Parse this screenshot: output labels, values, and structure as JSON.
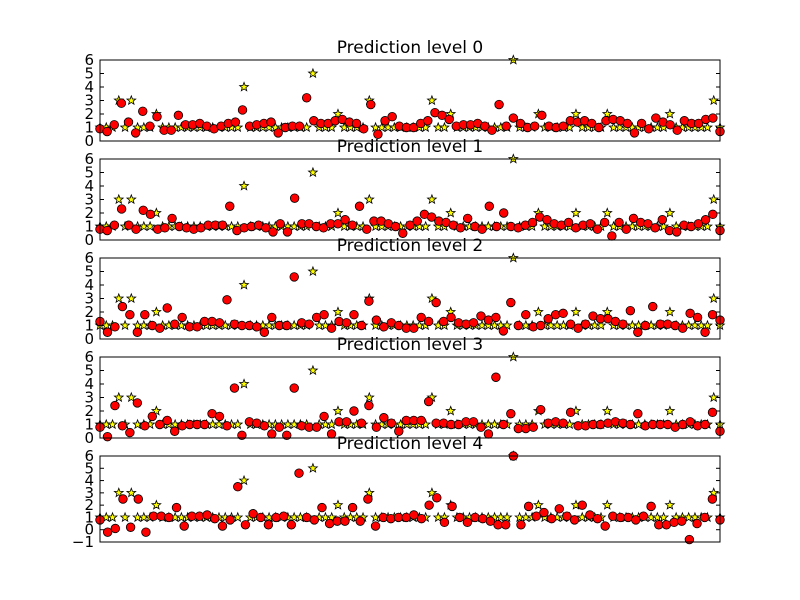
{
  "figure": {
    "background": "#ffffff"
  },
  "style": {
    "star_fill": "#ffff00",
    "star_stroke": "#000000",
    "circle_fill": "#ff0000",
    "circle_stroke": "#000000",
    "frame_color": "#000000"
  },
  "chart_data": [
    {
      "type": "scatter",
      "title": "Prediction level 0",
      "xlim": [
        0,
        99
      ],
      "ylim": [
        0,
        6
      ],
      "yticks": [
        0,
        1,
        2,
        3,
        4,
        5,
        6
      ],
      "xticks": [],
      "grid": false,
      "series": [
        {
          "marker": "star",
          "values": [
            1,
            1,
            1,
            3,
            1,
            3,
            1,
            1,
            1,
            2,
            1,
            1,
            1,
            1,
            1,
            1,
            1,
            1,
            1,
            1,
            1,
            1,
            1,
            4,
            1,
            1,
            1,
            1,
            1,
            1,
            1,
            1,
            1,
            1,
            5,
            1,
            1,
            1,
            2,
            1,
            1,
            1,
            1,
            3,
            1,
            1,
            1,
            1,
            1,
            1,
            1,
            1,
            1,
            3,
            1,
            1,
            2,
            1,
            1,
            1,
            1,
            1,
            1,
            1,
            1,
            1,
            6,
            1,
            1,
            1,
            2,
            1,
            1,
            1,
            1,
            1,
            2,
            1,
            1,
            1,
            1,
            2,
            1,
            1,
            1,
            1,
            1,
            1,
            1,
            1,
            1,
            2,
            1,
            1,
            1,
            1,
            1,
            1,
            3,
            1
          ]
        },
        {
          "marker": "circle",
          "values": [
            0.9,
            0.7,
            1.2,
            2.8,
            1.4,
            0.6,
            2.2,
            1.1,
            1.8,
            0.8,
            0.8,
            1.9,
            1.2,
            1.2,
            1.3,
            1.1,
            0.9,
            1.1,
            1.3,
            1.4,
            2.3,
            1.1,
            1.2,
            1.3,
            1.4,
            0.6,
            1.0,
            1.1,
            1.1,
            3.2,
            1.5,
            1.3,
            1.3,
            1.5,
            1.6,
            1.4,
            1.3,
            0.9,
            2.7,
            0.5,
            1.5,
            1.8,
            1.1,
            1.0,
            1.0,
            1.3,
            1.5,
            2.1,
            1.9,
            1.6,
            1.1,
            1.2,
            1.2,
            1.3,
            1.1,
            0.8,
            2.7,
            1.1,
            1.7,
            1.3,
            1.0,
            1.1,
            1.9,
            1.1,
            1.0,
            1.1,
            1.5,
            1.4,
            1.5,
            1.3,
            1.0,
            1.5,
            1.6,
            1.5,
            1.3,
            0.6,
            1.3,
            0.9,
            1.7,
            1.4,
            1.2,
            0.8,
            1.5,
            1.3,
            1.3,
            1.6,
            1.7,
            0.7
          ]
        }
      ]
    },
    {
      "type": "scatter",
      "title": "Prediction level 1",
      "xlim": [
        0,
        99
      ],
      "ylim": [
        0,
        6
      ],
      "yticks": [
        0,
        1,
        2,
        3,
        4,
        5,
        6
      ],
      "xticks": [],
      "grid": false,
      "series": [
        {
          "marker": "star",
          "values": [
            1,
            1,
            1,
            3,
            1,
            3,
            1,
            1,
            1,
            2,
            1,
            1,
            1,
            1,
            1,
            1,
            1,
            1,
            1,
            1,
            1,
            1,
            1,
            4,
            1,
            1,
            1,
            1,
            1,
            1,
            1,
            1,
            1,
            1,
            5,
            1,
            1,
            1,
            2,
            1,
            1,
            1,
            1,
            3,
            1,
            1,
            1,
            1,
            1,
            1,
            1,
            1,
            1,
            3,
            1,
            1,
            2,
            1,
            1,
            1,
            1,
            1,
            1,
            1,
            1,
            1,
            6,
            1,
            1,
            1,
            2,
            1,
            1,
            1,
            1,
            1,
            2,
            1,
            1,
            1,
            1,
            2,
            1,
            1,
            1,
            1,
            1,
            1,
            1,
            1,
            1,
            2,
            1,
            1,
            1,
            1,
            1,
            1,
            3,
            1
          ]
        },
        {
          "marker": "circle",
          "values": [
            0.8,
            0.7,
            1.1,
            2.3,
            1.1,
            0.8,
            2.2,
            1.9,
            0.8,
            0.9,
            1.6,
            1.0,
            0.9,
            0.8,
            0.9,
            1.1,
            1.1,
            1.1,
            2.5,
            0.7,
            0.9,
            1.0,
            1.1,
            0.9,
            0.6,
            1.2,
            0.6,
            3.1,
            1.2,
            1.2,
            1.0,
            0.9,
            1.2,
            1.2,
            1.5,
            1.1,
            2.5,
            0.8,
            1.4,
            1.4,
            1.2,
            1.0,
            0.5,
            1.1,
            1.4,
            1.9,
            1.7,
            1.4,
            1.3,
            1.1,
            0.9,
            1.6,
            1.0,
            0.8,
            2.5,
            1.0,
            2.0,
            1.0,
            0.9,
            1.1,
            1.3,
            1.7,
            1.5,
            1.2,
            1.1,
            1.3,
            0.9,
            1.1,
            1.2,
            0.8,
            1.3,
            0.3,
            1.3,
            0.8,
            1.6,
            1.3,
            1.2,
            0.9,
            1.5,
            0.7,
            0.6,
            1.1,
            1.0,
            1.2,
            1.5,
            1.9,
            0.7
          ]
        }
      ]
    },
    {
      "type": "scatter",
      "title": "Prediction level 2",
      "xlim": [
        0,
        99
      ],
      "ylim": [
        0,
        6
      ],
      "yticks": [
        0,
        1,
        2,
        3,
        4,
        5,
        6
      ],
      "xticks": [],
      "grid": false,
      "series": [
        {
          "marker": "star",
          "values": [
            1,
            1,
            1,
            3,
            1,
            3,
            1,
            1,
            1,
            2,
            1,
            1,
            1,
            1,
            1,
            1,
            1,
            1,
            1,
            1,
            1,
            1,
            1,
            4,
            1,
            1,
            1,
            1,
            1,
            1,
            1,
            1,
            1,
            1,
            5,
            1,
            1,
            1,
            2,
            1,
            1,
            1,
            1,
            3,
            1,
            1,
            1,
            1,
            1,
            1,
            1,
            1,
            1,
            3,
            1,
            1,
            2,
            1,
            1,
            1,
            1,
            1,
            1,
            1,
            1,
            1,
            6,
            1,
            1,
            1,
            2,
            1,
            1,
            1,
            1,
            1,
            2,
            1,
            1,
            1,
            1,
            2,
            1,
            1,
            1,
            1,
            1,
            1,
            1,
            1,
            1,
            2,
            1,
            1,
            1,
            1,
            1,
            1,
            3,
            1
          ]
        },
        {
          "marker": "circle",
          "values": [
            1.3,
            0.5,
            0.9,
            2.4,
            1.8,
            0.5,
            1.8,
            1.0,
            0.8,
            2.3,
            1.1,
            1.6,
            0.9,
            0.9,
            1.3,
            1.3,
            1.2,
            2.9,
            1.1,
            1.0,
            1.0,
            0.9,
            0.5,
            1.6,
            1.0,
            1.0,
            4.6,
            1.2,
            1.1,
            1.6,
            1.8,
            0.8,
            1.3,
            1.2,
            1.8,
            1.0,
            2.8,
            1.4,
            0.9,
            1.2,
            1.0,
            0.8,
            0.8,
            1.6,
            1.3,
            2.7,
            1.3,
            1.6,
            1.2,
            1.1,
            1.2,
            1.7,
            1.4,
            1.6,
            0.6,
            2.7,
            1.0,
            1.8,
            0.9,
            1.0,
            1.5,
            1.8,
            1.9,
            1.1,
            0.8,
            1.1,
            1.7,
            1.5,
            1.5,
            1.3,
            1.1,
            2.1,
            0.5,
            1.0,
            2.4,
            1.1,
            1.1,
            1.0,
            0.8,
            1.9,
            1.6,
            0.5,
            1.8,
            1.4
          ]
        }
      ]
    },
    {
      "type": "scatter",
      "title": "Prediction level 3",
      "xlim": [
        0,
        99
      ],
      "ylim": [
        0,
        6
      ],
      "yticks": [
        0,
        1,
        2,
        3,
        4,
        5,
        6
      ],
      "xticks": [],
      "grid": false,
      "series": [
        {
          "marker": "star",
          "values": [
            1,
            1,
            1,
            3,
            1,
            3,
            1,
            1,
            1,
            2,
            1,
            1,
            1,
            1,
            1,
            1,
            1,
            1,
            1,
            1,
            1,
            1,
            1,
            4,
            1,
            1,
            1,
            1,
            1,
            1,
            1,
            1,
            1,
            1,
            5,
            1,
            1,
            1,
            2,
            1,
            1,
            1,
            1,
            3,
            1,
            1,
            1,
            1,
            1,
            1,
            1,
            1,
            1,
            3,
            1,
            1,
            2,
            1,
            1,
            1,
            1,
            1,
            1,
            1,
            1,
            1,
            6,
            1,
            1,
            1,
            2,
            1,
            1,
            1,
            1,
            1,
            2,
            1,
            1,
            1,
            1,
            2,
            1,
            1,
            1,
            1,
            1,
            1,
            1,
            1,
            1,
            2,
            1,
            1,
            1,
            1,
            1,
            1,
            3,
            1
          ]
        },
        {
          "marker": "circle",
          "values": [
            0.8,
            0.1,
            2.4,
            0.9,
            0.4,
            2.6,
            0.9,
            1.6,
            1.0,
            1.3,
            0.5,
            0.9,
            1.0,
            1.0,
            1.0,
            1.8,
            1.6,
            0.9,
            3.7,
            0.2,
            1.2,
            1.1,
            0.9,
            0.3,
            0.8,
            0.2,
            3.7,
            0.9,
            0.8,
            0.8,
            1.6,
            0.3,
            1.2,
            1.2,
            2.0,
            1.1,
            2.4,
            0.8,
            1.5,
            1.1,
            0.5,
            1.3,
            1.3,
            1.3,
            2.7,
            1.1,
            1.1,
            1.0,
            1.0,
            1.2,
            1.2,
            0.8,
            0.3,
            4.5,
            1.0,
            1.8,
            0.7,
            0.7,
            0.8,
            2.1,
            1.1,
            1.2,
            1.1,
            1.9,
            0.9,
            0.9,
            1.0,
            1.0,
            1.1,
            1.2,
            1.1,
            1.0,
            1.8,
            0.9,
            1.0,
            1.0,
            1.0,
            0.8,
            1.0,
            1.2,
            0.9,
            1.0,
            1.9,
            0.5
          ]
        }
      ]
    },
    {
      "type": "scatter",
      "title": "Prediction level 4",
      "xlim": [
        0,
        99
      ],
      "ylim": [
        -1,
        6
      ],
      "yticks": [
        -1,
        0,
        1,
        2,
        3,
        4,
        5,
        6
      ],
      "xticks": [],
      "grid": false,
      "series": [
        {
          "marker": "star",
          "values": [
            1,
            1,
            1,
            3,
            1,
            3,
            1,
            1,
            1,
            2,
            1,
            1,
            1,
            1,
            1,
            1,
            1,
            1,
            1,
            1,
            1,
            1,
            1,
            4,
            1,
            1,
            1,
            1,
            1,
            1,
            1,
            1,
            1,
            1,
            5,
            1,
            1,
            1,
            2,
            1,
            1,
            1,
            1,
            3,
            1,
            1,
            1,
            1,
            1,
            1,
            1,
            1,
            1,
            3,
            1,
            1,
            2,
            1,
            1,
            1,
            1,
            1,
            1,
            1,
            1,
            1,
            6,
            1,
            1,
            1,
            2,
            1,
            1,
            1,
            1,
            1,
            2,
            1,
            1,
            1,
            1,
            2,
            1,
            1,
            1,
            1,
            1,
            1,
            1,
            1,
            1,
            2,
            1,
            1,
            1,
            1,
            1,
            1,
            3,
            1
          ]
        },
        {
          "marker": "circle",
          "values": [
            0.8,
            -0.2,
            0.1,
            2.5,
            0.2,
            2.5,
            -0.2,
            1.1,
            1.1,
            1.0,
            1.8,
            0.3,
            1.1,
            1.1,
            1.2,
            0.9,
            0.3,
            0.8,
            3.5,
            0.4,
            1.3,
            1.0,
            0.4,
            1.0,
            1.1,
            0.4,
            4.6,
            1.0,
            0.8,
            1.8,
            0.5,
            0.7,
            0.7,
            1.8,
            0.7,
            2.5,
            0.3,
            1.0,
            0.9,
            1.0,
            1.0,
            1.2,
            0.9,
            2.0,
            2.6,
            0.6,
            1.9,
            1.0,
            0.6,
            1.0,
            0.9,
            0.7,
            0.4,
            0.4,
            6.0,
            0.4,
            1.9,
            1.1,
            1.4,
            0.9,
            1.7,
            1.1,
            0.8,
            2.0,
            1.2,
            0.9,
            0.3,
            1.1,
            1.0,
            1.0,
            0.8,
            1.1,
            1.9,
            0.4,
            0.4,
            0.6,
            0.7,
            -0.8,
            0.5,
            1.0,
            2.5,
            0.8
          ]
        }
      ]
    }
  ]
}
